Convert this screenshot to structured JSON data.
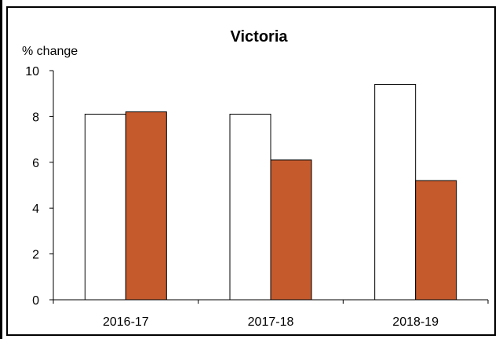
{
  "chart_data": {
    "type": "bar",
    "title": "Victoria",
    "ylabel": "% change",
    "xlabel": "",
    "categories": [
      "2016-17",
      "2017-18",
      "2018-19"
    ],
    "ylim": [
      0,
      10
    ],
    "yticks": [
      0,
      2,
      4,
      6,
      8,
      10
    ],
    "series": [
      {
        "values": [
          8.1,
          8.1,
          9.4
        ],
        "color": "#ffffff"
      },
      {
        "values": [
          8.2,
          6.1,
          5.2
        ],
        "color": "#c55a2d"
      }
    ],
    "grid": false,
    "legend": "none"
  }
}
